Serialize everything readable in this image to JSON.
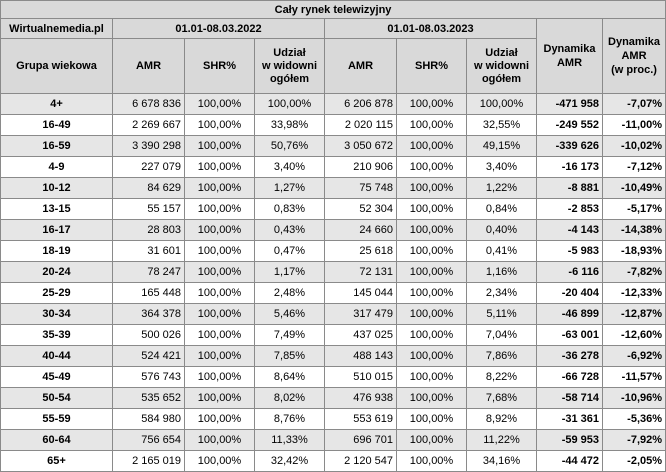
{
  "title": "Cały rynek telewizyjny",
  "source": "Wirtualnemedia.pl",
  "periods": [
    "01.01-08.03.2022",
    "01.01-08.03.2023"
  ],
  "headers": {
    "group": "Grupa wiekowa",
    "amr": "AMR",
    "shr": "SHR%",
    "share_line1": "Udział",
    "share_line2": "w widowni",
    "share_line3": "ogółem",
    "dyn_amr_line1": "Dynamika",
    "dyn_amr_line2": "AMR",
    "dyn_pct_line1": "Dynamika",
    "dyn_pct_line2": "AMR",
    "dyn_pct_line3": "(w proc.)"
  },
  "rows": [
    {
      "group": "4+",
      "amr22": "6 678 836",
      "shr22": "100,00%",
      "share22": "100,00%",
      "amr23": "6 206 878",
      "shr23": "100,00%",
      "share23": "100,00%",
      "dyn": "-471 958",
      "dynpct": "-7,07%"
    },
    {
      "group": "16-49",
      "amr22": "2 269 667",
      "shr22": "100,00%",
      "share22": "33,98%",
      "amr23": "2 020 115",
      "shr23": "100,00%",
      "share23": "32,55%",
      "dyn": "-249 552",
      "dynpct": "-11,00%"
    },
    {
      "group": "16-59",
      "amr22": "3 390 298",
      "shr22": "100,00%",
      "share22": "50,76%",
      "amr23": "3 050 672",
      "shr23": "100,00%",
      "share23": "49,15%",
      "dyn": "-339 626",
      "dynpct": "-10,02%"
    },
    {
      "group": "4-9",
      "amr22": "227 079",
      "shr22": "100,00%",
      "share22": "3,40%",
      "amr23": "210 906",
      "shr23": "100,00%",
      "share23": "3,40%",
      "dyn": "-16 173",
      "dynpct": "-7,12%"
    },
    {
      "group": "10-12",
      "amr22": "84 629",
      "shr22": "100,00%",
      "share22": "1,27%",
      "amr23": "75 748",
      "shr23": "100,00%",
      "share23": "1,22%",
      "dyn": "-8 881",
      "dynpct": "-10,49%"
    },
    {
      "group": "13-15",
      "amr22": "55 157",
      "shr22": "100,00%",
      "share22": "0,83%",
      "amr23": "52 304",
      "shr23": "100,00%",
      "share23": "0,84%",
      "dyn": "-2 853",
      "dynpct": "-5,17%"
    },
    {
      "group": "16-17",
      "amr22": "28 803",
      "shr22": "100,00%",
      "share22": "0,43%",
      "amr23": "24 660",
      "shr23": "100,00%",
      "share23": "0,40%",
      "dyn": "-4 143",
      "dynpct": "-14,38%"
    },
    {
      "group": "18-19",
      "amr22": "31 601",
      "shr22": "100,00%",
      "share22": "0,47%",
      "amr23": "25 618",
      "shr23": "100,00%",
      "share23": "0,41%",
      "dyn": "-5 983",
      "dynpct": "-18,93%"
    },
    {
      "group": "20-24",
      "amr22": "78 247",
      "shr22": "100,00%",
      "share22": "1,17%",
      "amr23": "72 131",
      "shr23": "100,00%",
      "share23": "1,16%",
      "dyn": "-6 116",
      "dynpct": "-7,82%"
    },
    {
      "group": "25-29",
      "amr22": "165 448",
      "shr22": "100,00%",
      "share22": "2,48%",
      "amr23": "145 044",
      "shr23": "100,00%",
      "share23": "2,34%",
      "dyn": "-20 404",
      "dynpct": "-12,33%"
    },
    {
      "group": "30-34",
      "amr22": "364 378",
      "shr22": "100,00%",
      "share22": "5,46%",
      "amr23": "317 479",
      "shr23": "100,00%",
      "share23": "5,11%",
      "dyn": "-46 899",
      "dynpct": "-12,87%"
    },
    {
      "group": "35-39",
      "amr22": "500 026",
      "shr22": "100,00%",
      "share22": "7,49%",
      "amr23": "437 025",
      "shr23": "100,00%",
      "share23": "7,04%",
      "dyn": "-63 001",
      "dynpct": "-12,60%"
    },
    {
      "group": "40-44",
      "amr22": "524 421",
      "shr22": "100,00%",
      "share22": "7,85%",
      "amr23": "488 143",
      "shr23": "100,00%",
      "share23": "7,86%",
      "dyn": "-36 278",
      "dynpct": "-6,92%"
    },
    {
      "group": "45-49",
      "amr22": "576 743",
      "shr22": "100,00%",
      "share22": "8,64%",
      "amr23": "510 015",
      "shr23": "100,00%",
      "share23": "8,22%",
      "dyn": "-66 728",
      "dynpct": "-11,57%"
    },
    {
      "group": "50-54",
      "amr22": "535 652",
      "shr22": "100,00%",
      "share22": "8,02%",
      "amr23": "476 938",
      "shr23": "100,00%",
      "share23": "7,68%",
      "dyn": "-58 714",
      "dynpct": "-10,96%"
    },
    {
      "group": "55-59",
      "amr22": "584 980",
      "shr22": "100,00%",
      "share22": "8,76%",
      "amr23": "553 619",
      "shr23": "100,00%",
      "share23": "8,92%",
      "dyn": "-31 361",
      "dynpct": "-5,36%"
    },
    {
      "group": "60-64",
      "amr22": "756 654",
      "shr22": "100,00%",
      "share22": "11,33%",
      "amr23": "696 701",
      "shr23": "100,00%",
      "share23": "11,22%",
      "dyn": "-59 953",
      "dynpct": "-7,92%"
    },
    {
      "group": "65+",
      "amr22": "2 165 019",
      "shr22": "100,00%",
      "share22": "32,42%",
      "amr23": "2 120 547",
      "shr23": "100,00%",
      "share23": "34,16%",
      "dyn": "-44 472",
      "dynpct": "-2,05%"
    }
  ],
  "style": {
    "header_bg": "#d9d9d9",
    "row_shade_bg": "#e6e6e6",
    "border": "#8a8a8a"
  }
}
